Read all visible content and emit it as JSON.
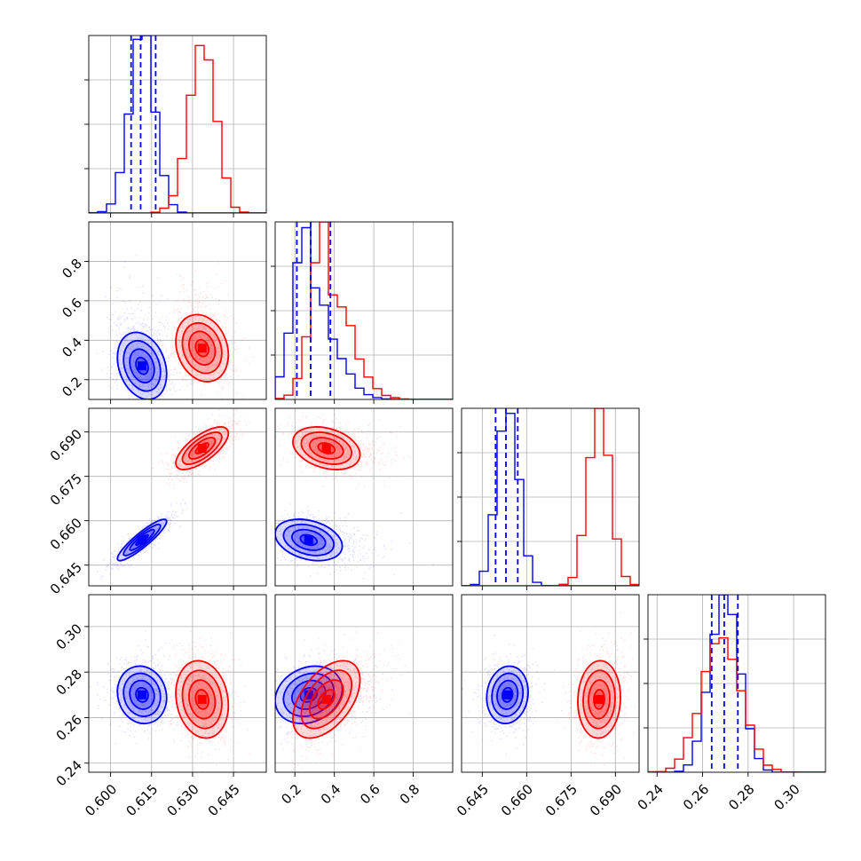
{
  "chart_data": {
    "type": "corner",
    "series": [
      {
        "name": "",
        "color": "#0000ff",
        "means": [
          0.6115,
          0.27,
          0.6535,
          0.27
        ],
        "sd": [
          0.0045,
          0.085,
          0.0035,
          0.0063
        ],
        "rho": {
          "1_0": -0.25,
          "2_0": 0.9,
          "2_1": -0.3,
          "3_0": -0.1,
          "3_1": 0.2,
          "3_2": 0.1
        },
        "quantiles": [
          [
            0.6075,
            0.611,
            0.6165
          ],
          [
            0.21,
            0.28,
            0.38
          ],
          [
            0.6495,
            0.653,
            0.657
          ],
          [
            0.264,
            0.2695,
            0.2755
          ]
        ]
      },
      {
        "name": "",
        "color": "#ff0000",
        "means": [
          0.6335,
          0.36,
          0.6845,
          0.268
        ],
        "sd": [
          0.0048,
          0.085,
          0.0036,
          0.0085
        ],
        "rho": {
          "1_0": -0.2,
          "2_0": 0.7,
          "2_1": -0.3,
          "3_0": -0.15,
          "3_1": 0.5,
          "3_2": 0.05
        }
      }
    ],
    "ranges": [
      [
        0.592,
        0.657
      ],
      [
        0.1,
        1.0
      ],
      [
        0.638,
        0.698
      ],
      [
        0.236,
        0.314
      ]
    ],
    "ticks": [
      [
        "0.600",
        "0.615",
        "0.630",
        "0.645"
      ],
      [
        "0.2",
        "0.4",
        "0.6",
        "0.8"
      ],
      [
        "0.645",
        "0.660",
        "0.675",
        "0.690"
      ],
      [
        "0.24",
        "0.26",
        "0.28",
        "0.30"
      ]
    ],
    "grid": true,
    "legend": "none"
  }
}
